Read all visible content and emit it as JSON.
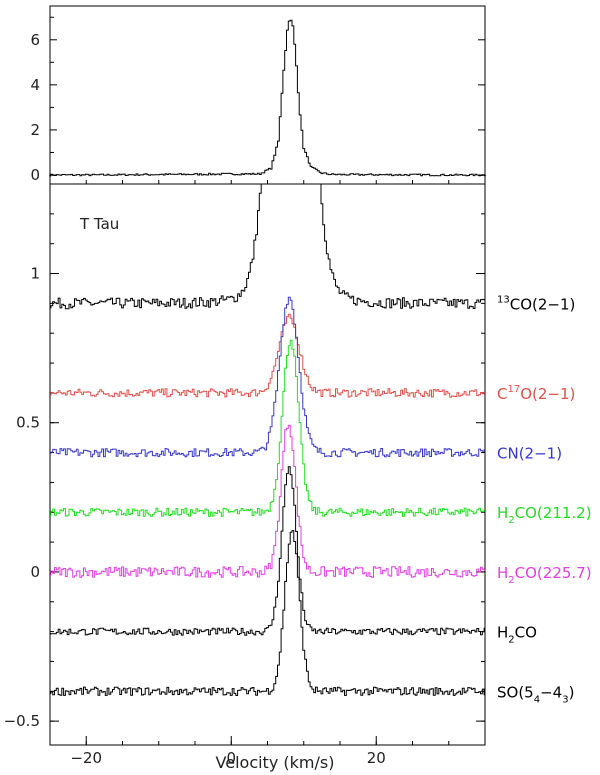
{
  "chart_data": [
    {
      "type": "line",
      "panel": "top",
      "xlim": [
        -25,
        35
      ],
      "ylim": [
        -0.4,
        7.5
      ],
      "yticks": [
        "0",
        "2",
        "4",
        "6"
      ],
      "series": [
        {
          "color": "#000000",
          "points": [
            [
              -20,
              0.0
            ],
            [
              4,
              0.05
            ],
            [
              5.5,
              0.3
            ],
            [
              6.5,
              1.5
            ],
            [
              7.2,
              4.5
            ],
            [
              7.8,
              6.6
            ],
            [
              8.1,
              7.0
            ],
            [
              8.5,
              6.6
            ],
            [
              8.9,
              5.3
            ],
            [
              9.4,
              3.0
            ],
            [
              10.0,
              1.2
            ],
            [
              11.0,
              0.35
            ],
            [
              12.5,
              0.08
            ],
            [
              14,
              0.02
            ],
            [
              30,
              0.0
            ]
          ]
        }
      ]
    },
    {
      "type": "line",
      "panel": "bottom",
      "xlabel": "Velocity (km/s)",
      "xlim": [
        -25,
        35
      ],
      "ylim": [
        -0.58,
        1.3
      ],
      "xticks": [
        "−20",
        "0",
        "20"
      ],
      "yticks": [
        "−0.5",
        "0",
        "0.5",
        "1"
      ],
      "annotation": "T Tau",
      "series": [
        {
          "name": "13CO(2-1)",
          "label_sup_pre": "13",
          "label_text": "CO(2−1)",
          "color": "#000000",
          "offset": 0.9,
          "peak": 2.0,
          "center": 8.2,
          "width": 2.2,
          "wings": 0.2,
          "noise": 0.018
        },
        {
          "name": "C17O(2-1)",
          "label_parts": [
            "C",
            "17",
            "O(2−1)"
          ],
          "color": "#e0504a",
          "offset": 0.6,
          "peak": 0.25,
          "center": 8.0,
          "width": 1.4,
          "wings": 0.0,
          "noise": 0.014
        },
        {
          "name": "CN(2-1)",
          "label_text": "CN(2−1)",
          "color": "#3838c8",
          "offset": 0.4,
          "peak": 0.52,
          "center": 8.0,
          "width": 1.3,
          "wings": 0.0,
          "noise": 0.014
        },
        {
          "name": "H2CO(211.2)",
          "label_parts": [
            "H",
            "2",
            "CO(211.2)"
          ],
          "color": "#22dd22",
          "offset": 0.2,
          "peak": 0.58,
          "center": 8.2,
          "width": 1.1,
          "wings": 0.0,
          "noise": 0.014
        },
        {
          "name": "H2CO(225.7)",
          "label_parts": [
            "H",
            "2",
            "CO(225.7)"
          ],
          "color": "#e23ee2",
          "offset": 0.0,
          "peak": 0.5,
          "center": 7.9,
          "width": 1.0,
          "wings": 0.0,
          "noise": 0.018
        },
        {
          "name": "H2CO",
          "label_parts": [
            "H",
            "2",
            "CO"
          ],
          "color": "#000000",
          "offset": -0.2,
          "peak": 0.55,
          "center": 8.0,
          "width": 1.0,
          "wings": 0.0,
          "noise": 0.012
        },
        {
          "name": "SO(5_4-4_3)",
          "label_so": true,
          "color": "#000000",
          "offset": -0.4,
          "peak": 0.54,
          "center": 8.4,
          "width": 1.0,
          "wings": 0.0,
          "noise": 0.014
        }
      ]
    }
  ]
}
